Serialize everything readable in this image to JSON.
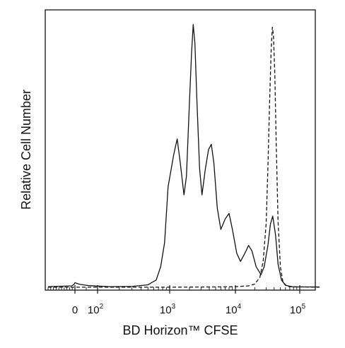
{
  "chart_data": {
    "type": "line",
    "xlabel": "BD Horizon™ CFSE",
    "ylabel": "Relative Cell Number",
    "x_scale": "biexponential",
    "xlim": [
      -500,
      200000
    ],
    "ylim": [
      0,
      1.0
    ],
    "grid": false,
    "legend": "none",
    "x_tick_labels": [
      {
        "value": 0,
        "base": "0",
        "exp": ""
      },
      {
        "value": 100,
        "base": "10",
        "exp": "2"
      },
      {
        "value": 1000,
        "base": "10",
        "exp": "3"
      },
      {
        "value": 10000,
        "base": "10",
        "exp": "4"
      },
      {
        "value": 100000,
        "base": "10",
        "exp": "5"
      }
    ],
    "series": [
      {
        "style": "solid",
        "color": "#111111",
        "points": [
          [
            -500,
            0.005
          ],
          [
            -60,
            0.008
          ],
          [
            -20,
            0.013
          ],
          [
            0,
            0.02
          ],
          [
            20,
            0.014
          ],
          [
            60,
            0.009
          ],
          [
            150,
            0.005
          ],
          [
            300,
            0.006
          ],
          [
            500,
            0.012
          ],
          [
            650,
            0.03
          ],
          [
            750,
            0.08
          ],
          [
            850,
            0.17
          ],
          [
            950,
            0.38
          ],
          [
            1150,
            0.5
          ],
          [
            1300,
            0.56
          ],
          [
            1450,
            0.47
          ],
          [
            1650,
            0.35
          ],
          [
            1800,
            0.42
          ],
          [
            2000,
            0.7
          ],
          [
            2150,
            0.88
          ],
          [
            2280,
            0.99
          ],
          [
            2420,
            0.92
          ],
          [
            2600,
            0.7
          ],
          [
            2850,
            0.45
          ],
          [
            3100,
            0.35
          ],
          [
            3500,
            0.45
          ],
          [
            3900,
            0.52
          ],
          [
            4300,
            0.54
          ],
          [
            4700,
            0.47
          ],
          [
            5300,
            0.3
          ],
          [
            6000,
            0.22
          ],
          [
            7000,
            0.26
          ],
          [
            8000,
            0.28
          ],
          [
            9000,
            0.22
          ],
          [
            10500,
            0.13
          ],
          [
            12000,
            0.1
          ],
          [
            14000,
            0.13
          ],
          [
            16000,
            0.16
          ],
          [
            18000,
            0.14
          ],
          [
            21000,
            0.08
          ],
          [
            25000,
            0.05
          ],
          [
            28000,
            0.08
          ],
          [
            32000,
            0.16
          ],
          [
            35000,
            0.24
          ],
          [
            38000,
            0.27
          ],
          [
            42000,
            0.2
          ],
          [
            46000,
            0.09
          ],
          [
            52000,
            0.03
          ],
          [
            60000,
            0.01
          ],
          [
            80000,
            0.004
          ],
          [
            200000,
            0.004
          ]
        ]
      },
      {
        "style": "dashed",
        "color": "#111111",
        "points": [
          [
            -500,
            0.003
          ],
          [
            0,
            0.003
          ],
          [
            1000,
            0.003
          ],
          [
            5000,
            0.004
          ],
          [
            10000,
            0.005
          ],
          [
            16000,
            0.008
          ],
          [
            20000,
            0.015
          ],
          [
            24000,
            0.04
          ],
          [
            27000,
            0.1
          ],
          [
            30000,
            0.24
          ],
          [
            32000,
            0.45
          ],
          [
            34000,
            0.7
          ],
          [
            36000,
            0.9
          ],
          [
            37500,
            0.98
          ],
          [
            39000,
            0.95
          ],
          [
            41000,
            0.8
          ],
          [
            43000,
            0.55
          ],
          [
            46000,
            0.25
          ],
          [
            50000,
            0.08
          ],
          [
            55000,
            0.02
          ],
          [
            65000,
            0.005
          ],
          [
            200000,
            0.003
          ]
        ]
      }
    ]
  }
}
